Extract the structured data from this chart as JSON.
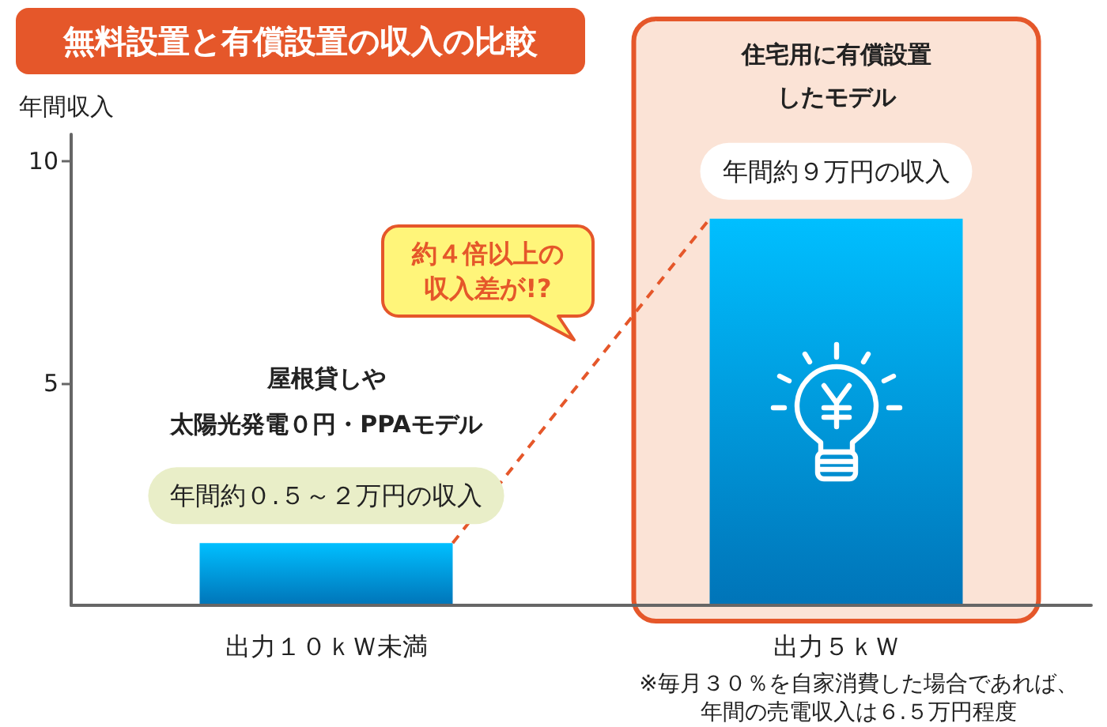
{
  "chart_data": {
    "type": "bar",
    "title": "無料設置と有償設置の収入の比較",
    "ylabel": "年間収入",
    "categories": [
      "出力１０ｋＷ未満",
      "出力５ｋＷ"
    ],
    "values": [
      1.4,
      8.7
    ],
    "color": "#0091e6",
    "ylim": [
      0,
      10.6
    ],
    "yticks": [
      5,
      10
    ],
    "bands": [
      {
        "axis": "x",
        "from": "出力５ｋＷ",
        "to": "出力５ｋＷ",
        "label": "住宅用に有償設置したモデル",
        "color": "#fbe3d6"
      }
    ],
    "annotations": [
      "屋根貸しや",
      "太陽光発電０円・PPAモデル",
      "年間約０.５～２万円の収入",
      "約４倍以上の収入差が!?",
      "年間約９万円の収入",
      "※毎月３０％を自家消費した場合であれば、年間の売電収入は６.５万円程度"
    ]
  }
}
